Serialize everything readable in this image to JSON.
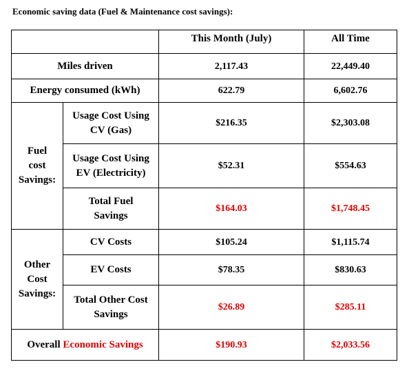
{
  "caption": "Economic saving data (Fuel & Maintenance cost savings):",
  "headers": {
    "this_month": "This Month (July)",
    "all_time": "All Time"
  },
  "rows": {
    "miles": {
      "label": "Miles driven",
      "this_month": "2,117.43",
      "all_time": "22,449.40"
    },
    "energy": {
      "label": "Energy consumed (kWh)",
      "this_month": "622.79",
      "all_time": "6,602.76"
    }
  },
  "fuel_group": {
    "label_line1": "Fuel",
    "label_line2": "cost",
    "label_line3": "Savings:",
    "usage_cv": {
      "label_line1": "Usage Cost Using",
      "label_line2": "CV (Gas)",
      "this_month": "$216.35",
      "all_time": "$2,303.08"
    },
    "usage_ev": {
      "label_line1": "Usage Cost Using",
      "label_line2": "EV (Electricity)",
      "this_month": "$52.31",
      "all_time": "$554.63"
    },
    "total": {
      "label_line1": "Total Fuel",
      "label_line2": "Savings",
      "this_month": "$164.03",
      "all_time": "$1,748.45"
    }
  },
  "other_group": {
    "label_line1": "Other",
    "label_line2": "Cost",
    "label_line3": "Savings:",
    "cv_costs": {
      "label": "CV Costs",
      "this_month": "$105.24",
      "all_time": "$1,115.74"
    },
    "ev_costs": {
      "label": "EV Costs",
      "this_month": "$78.35",
      "all_time": "$830.63"
    },
    "total": {
      "label_line1": "Total Other Cost",
      "label_line2": "Savings",
      "this_month": "$26.89",
      "all_time": "$285.11"
    }
  },
  "overall": {
    "label_prefix": "Overall",
    "label_highlight": "Economic Savings",
    "this_month": "$190.93",
    "all_time": "$2,033.56"
  },
  "colors": {
    "highlight": "#e00000",
    "text": "#000000",
    "border": "#000000"
  }
}
